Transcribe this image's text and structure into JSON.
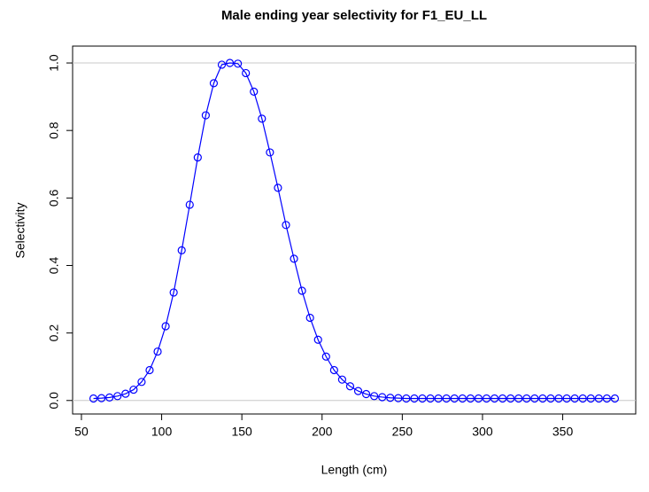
{
  "chart_data": {
    "type": "line",
    "title": "Male ending year selectivity for F1_EU_LL",
    "x_label": "Length (cm)",
    "y_label": "Selectivity",
    "x": [
      57.5,
      62.5,
      67.5,
      72.5,
      77.5,
      82.5,
      87.5,
      92.5,
      97.5,
      102.5,
      107.5,
      112.5,
      117.5,
      122.5,
      127.5,
      132.5,
      137.5,
      142.5,
      147.5,
      152.5,
      157.5,
      162.5,
      167.5,
      172.5,
      177.5,
      182.5,
      187.5,
      192.5,
      197.5,
      202.5,
      207.5,
      212.5,
      217.5,
      222.5,
      227.5,
      232.5,
      237.5,
      242.5,
      247.5,
      252.5,
      257.5,
      262.5,
      267.5,
      272.5,
      277.5,
      282.5,
      287.5,
      292.5,
      297.5,
      302.5,
      307.5,
      312.5,
      317.5,
      322.5,
      327.5,
      332.5,
      337.5,
      342.5,
      347.5,
      352.5,
      357.5,
      362.5,
      367.5,
      372.5,
      377.5,
      382.5
    ],
    "series": [
      {
        "name": "Selectivity",
        "color": "#0000ff",
        "values": [
          0.006,
          0.007,
          0.009,
          0.013,
          0.02,
          0.032,
          0.055,
          0.09,
          0.145,
          0.22,
          0.32,
          0.445,
          0.58,
          0.72,
          0.845,
          0.94,
          0.995,
          1.0,
          0.998,
          0.97,
          0.915,
          0.835,
          0.735,
          0.63,
          0.52,
          0.42,
          0.325,
          0.245,
          0.18,
          0.13,
          0.09,
          0.062,
          0.042,
          0.028,
          0.019,
          0.013,
          0.01,
          0.008,
          0.007,
          0.006,
          0.006,
          0.006,
          0.006,
          0.006,
          0.006,
          0.006,
          0.006,
          0.006,
          0.006,
          0.006,
          0.006,
          0.006,
          0.006,
          0.006,
          0.006,
          0.006,
          0.006,
          0.006,
          0.006,
          0.006,
          0.006,
          0.006,
          0.006,
          0.006,
          0.006,
          0.006
        ]
      }
    ],
    "xlim": [
      44.5,
      395.5
    ],
    "ylim": [
      -0.04,
      1.05
    ],
    "xticks": [
      50,
      100,
      150,
      200,
      250,
      300,
      350
    ],
    "yticks": [
      {
        "value": 0,
        "label": "0.0"
      },
      {
        "value": 0.2,
        "label": "0.2"
      },
      {
        "value": 0.4,
        "label": "0.4"
      },
      {
        "value": 0.6,
        "label": "0.6"
      },
      {
        "value": 0.8,
        "label": "0.8"
      },
      {
        "value": 1,
        "label": "1.0"
      }
    ],
    "hlines": [
      0,
      1
    ],
    "hline_color": "#c8c8c8",
    "markers": "open-circle"
  }
}
